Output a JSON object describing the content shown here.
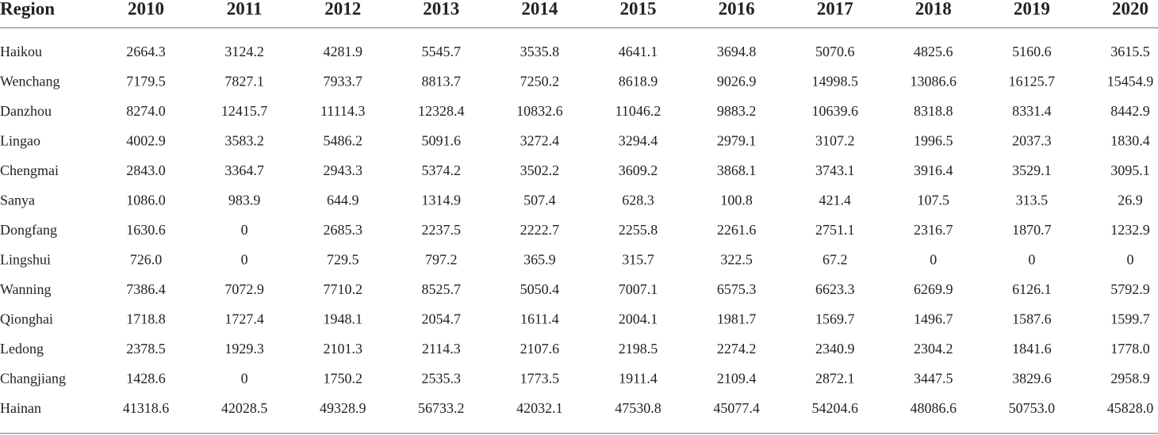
{
  "table": {
    "header": [
      "Region",
      "2010",
      "2011",
      "2012",
      "2013",
      "2014",
      "2015",
      "2016",
      "2017",
      "2018",
      "2019",
      "2020"
    ],
    "rows": [
      [
        "Haikou",
        "2664.3",
        "3124.2",
        "4281.9",
        "5545.7",
        "3535.8",
        "4641.1",
        "3694.8",
        "5070.6",
        "4825.6",
        "5160.6",
        "3615.5"
      ],
      [
        "Wenchang",
        "7179.5",
        "7827.1",
        "7933.7",
        "8813.7",
        "7250.2",
        "8618.9",
        "9026.9",
        "14998.5",
        "13086.6",
        "16125.7",
        "15454.9"
      ],
      [
        "Danzhou",
        "8274.0",
        "12415.7",
        "11114.3",
        "12328.4",
        "10832.6",
        "11046.2",
        "9883.2",
        "10639.6",
        "8318.8",
        "8331.4",
        "8442.9"
      ],
      [
        "Lingao",
        "4002.9",
        "3583.2",
        "5486.2",
        "5091.6",
        "3272.4",
        "3294.4",
        "2979.1",
        "3107.2",
        "1996.5",
        "2037.3",
        "1830.4"
      ],
      [
        "Chengmai",
        "2843.0",
        "3364.7",
        "2943.3",
        "5374.2",
        "3502.2",
        "3609.2",
        "3868.1",
        "3743.1",
        "3916.4",
        "3529.1",
        "3095.1"
      ],
      [
        "Sanya",
        "1086.0",
        "983.9",
        "644.9",
        "1314.9",
        "507.4",
        "628.3",
        "100.8",
        "421.4",
        "107.5",
        "313.5",
        "26.9"
      ],
      [
        "Dongfang",
        "1630.6",
        "0",
        "2685.3",
        "2237.5",
        "2222.7",
        "2255.8",
        "2261.6",
        "2751.1",
        "2316.7",
        "1870.7",
        "1232.9"
      ],
      [
        "Lingshui",
        "726.0",
        "0",
        "729.5",
        "797.2",
        "365.9",
        "315.7",
        "322.5",
        "67.2",
        "0",
        "0",
        "0"
      ],
      [
        "Wanning",
        "7386.4",
        "7072.9",
        "7710.2",
        "8525.7",
        "5050.4",
        "7007.1",
        "6575.3",
        "6623.3",
        "6269.9",
        "6126.1",
        "5792.9"
      ],
      [
        "Qionghai",
        "1718.8",
        "1727.4",
        "1948.1",
        "2054.7",
        "1611.4",
        "2004.1",
        "1981.7",
        "1569.7",
        "1496.7",
        "1587.6",
        "1599.7"
      ],
      [
        "Ledong",
        "2378.5",
        "1929.3",
        "2101.3",
        "2114.3",
        "2107.6",
        "2198.5",
        "2274.2",
        "2340.9",
        "2304.2",
        "1841.6",
        "1778.0"
      ],
      [
        "Changjiang",
        "1428.6",
        "0",
        "1750.2",
        "2535.3",
        "1773.5",
        "1911.4",
        "2109.4",
        "2872.1",
        "3447.5",
        "3829.6",
        "2958.9"
      ],
      [
        "Hainan",
        "41318.6",
        "42028.5",
        "49328.9",
        "56733.2",
        "42032.1",
        "47530.8",
        "45077.4",
        "54204.6",
        "48086.6",
        "50753.0",
        "45828.0"
      ]
    ]
  }
}
